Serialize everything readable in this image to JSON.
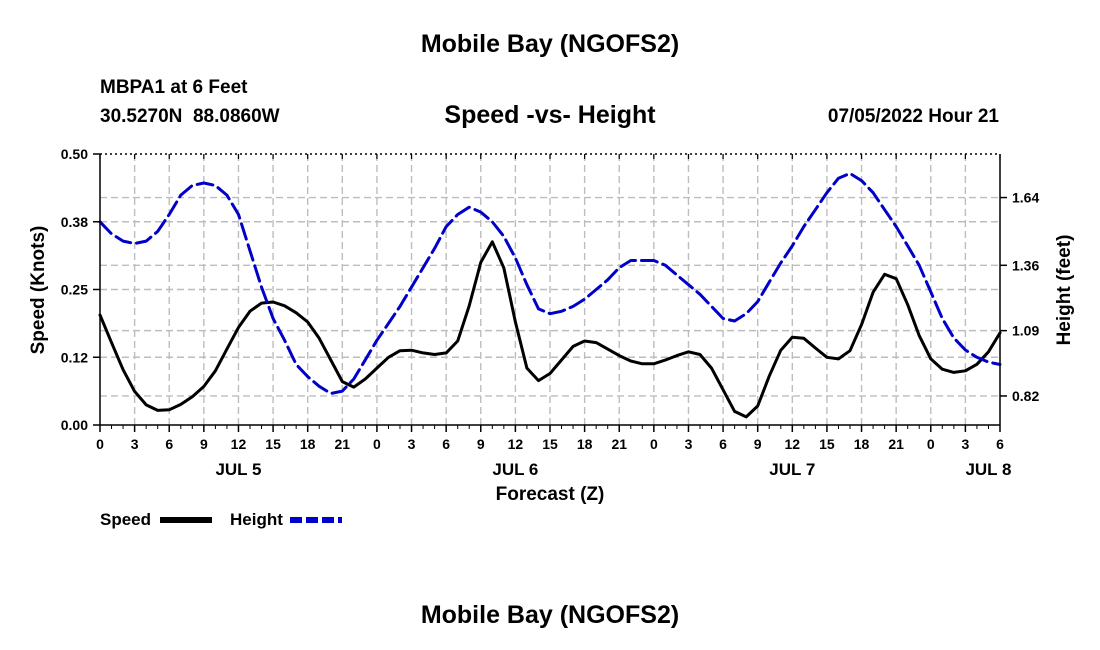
{
  "header": {
    "title": "Mobile Bay (NGOFS2)",
    "station_line": "MBPA1 at 6 Feet",
    "coords_line": "30.5270N  88.0860W",
    "subtitle": "Speed -vs- Height",
    "datetime": "07/05/2022 Hour 21"
  },
  "footer": {
    "title": "Mobile Bay (NGOFS2)"
  },
  "colors": {
    "speed": "#000000",
    "height": "#0000c8",
    "grid": "#bdbdbd"
  },
  "chart_data": {
    "type": "line",
    "title": "Speed -vs- Height",
    "xlabel": "Forecast (Z)",
    "ylabel": "Speed (Knots)",
    "y2label": "Height (feet)",
    "xlim": [
      0,
      78
    ],
    "ylim": [
      0,
      0.5
    ],
    "y2lim": [
      0.7,
      1.82
    ],
    "grid": true,
    "legend_position": "bottom-left",
    "x_ticks": [
      0,
      3,
      6,
      9,
      12,
      15,
      18,
      21,
      24,
      27,
      30,
      33,
      36,
      39,
      42,
      45,
      48,
      51,
      54,
      57,
      60,
      63,
      66,
      69,
      72,
      75,
      78
    ],
    "x_tick_labels": [
      "0",
      "3",
      "6",
      "9",
      "12",
      "15",
      "18",
      "21",
      "0",
      "3",
      "6",
      "9",
      "12",
      "15",
      "18",
      "21",
      "0",
      "3",
      "6",
      "9",
      "12",
      "15",
      "18",
      "21",
      "0",
      "3",
      "6"
    ],
    "date_labels": [
      {
        "x": 12,
        "label": "JUL 5"
      },
      {
        "x": 36,
        "label": "JUL 6"
      },
      {
        "x": 60,
        "label": "JUL 7"
      },
      {
        "x": 77,
        "label": "JUL 8"
      }
    ],
    "y_ticks": [
      0.0,
      0.125,
      0.25,
      0.375,
      0.5
    ],
    "y_tick_labels": [
      "0.00",
      "0.12",
      "0.25",
      "0.38",
      "0.50"
    ],
    "y2_ticks": [
      0.82,
      1.09,
      1.36,
      1.64
    ],
    "y2_tick_labels": [
      "0.82",
      "1.09",
      "1.36",
      "1.64"
    ],
    "series": [
      {
        "name": "Speed",
        "axis": "left",
        "style": "solid",
        "x": [
          0,
          1,
          2,
          3,
          4,
          5,
          6,
          7,
          8,
          9,
          10,
          11,
          12,
          13,
          14,
          15,
          16,
          17,
          18,
          19,
          20,
          21,
          22,
          23,
          24,
          25,
          26,
          27,
          28,
          29,
          30,
          31,
          32,
          33,
          34,
          35,
          36,
          37,
          38,
          39,
          40,
          41,
          42,
          43,
          44,
          45,
          46,
          47,
          48,
          49,
          50,
          51,
          52,
          53,
          54,
          55,
          56,
          57,
          58,
          59,
          60,
          61,
          62,
          63,
          64,
          65,
          66,
          67,
          68,
          69,
          70,
          71,
          72,
          73,
          74,
          75,
          76,
          77,
          78
        ],
        "y": [
          0.203,
          0.152,
          0.102,
          0.062,
          0.037,
          0.027,
          0.028,
          0.038,
          0.052,
          0.071,
          0.1,
          0.14,
          0.18,
          0.21,
          0.225,
          0.227,
          0.22,
          0.207,
          0.19,
          0.16,
          0.12,
          0.08,
          0.07,
          0.085,
          0.105,
          0.125,
          0.137,
          0.138,
          0.133,
          0.13,
          0.133,
          0.155,
          0.22,
          0.3,
          0.338,
          0.29,
          0.19,
          0.105,
          0.082,
          0.095,
          0.12,
          0.145,
          0.155,
          0.152,
          0.14,
          0.128,
          0.118,
          0.113,
          0.113,
          0.12,
          0.128,
          0.135,
          0.13,
          0.105,
          0.065,
          0.025,
          0.015,
          0.035,
          0.09,
          0.138,
          0.162,
          0.16,
          0.142,
          0.125,
          0.122,
          0.137,
          0.185,
          0.245,
          0.278,
          0.27,
          0.222,
          0.165,
          0.122,
          0.103,
          0.097,
          0.1,
          0.112,
          0.135,
          0.17
        ]
      },
      {
        "name": "Height",
        "axis": "right",
        "style": "dashed",
        "x": [
          0,
          1,
          2,
          3,
          4,
          5,
          6,
          7,
          8,
          9,
          10,
          11,
          12,
          13,
          14,
          15,
          16,
          17,
          18,
          19,
          20,
          21,
          22,
          23,
          24,
          25,
          26,
          27,
          28,
          29,
          30,
          31,
          32,
          33,
          34,
          35,
          36,
          37,
          38,
          39,
          40,
          41,
          42,
          43,
          44,
          45,
          46,
          47,
          48,
          49,
          50,
          51,
          52,
          53,
          54,
          55,
          56,
          57,
          58,
          59,
          60,
          61,
          62,
          63,
          64,
          65,
          66,
          67,
          68,
          69,
          70,
          71,
          72,
          73,
          74,
          75,
          76,
          77,
          78
        ],
        "y": [
          1.54,
          1.49,
          1.46,
          1.45,
          1.46,
          1.5,
          1.57,
          1.65,
          1.69,
          1.7,
          1.69,
          1.65,
          1.57,
          1.42,
          1.27,
          1.14,
          1.05,
          0.95,
          0.9,
          0.86,
          0.83,
          0.84,
          0.89,
          0.97,
          1.05,
          1.12,
          1.19,
          1.27,
          1.35,
          1.43,
          1.52,
          1.57,
          1.6,
          1.58,
          1.54,
          1.48,
          1.39,
          1.28,
          1.18,
          1.16,
          1.17,
          1.19,
          1.22,
          1.26,
          1.3,
          1.35,
          1.38,
          1.38,
          1.38,
          1.36,
          1.32,
          1.28,
          1.24,
          1.19,
          1.14,
          1.13,
          1.16,
          1.21,
          1.29,
          1.37,
          1.44,
          1.52,
          1.59,
          1.66,
          1.72,
          1.74,
          1.71,
          1.66,
          1.59,
          1.52,
          1.44,
          1.36,
          1.25,
          1.14,
          1.06,
          1.01,
          0.98,
          0.96,
          0.95
        ]
      }
    ]
  },
  "legend": {
    "items": [
      {
        "label": "Speed",
        "color": "#000000",
        "style": "solid"
      },
      {
        "label": "Height",
        "color": "#0000c8",
        "style": "dashed"
      }
    ]
  }
}
